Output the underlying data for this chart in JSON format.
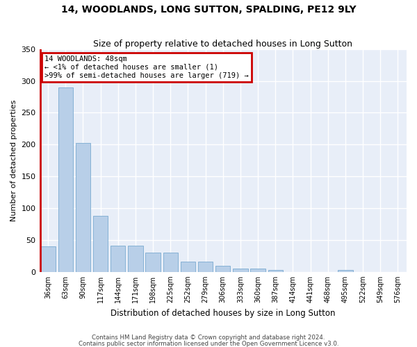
{
  "title": "14, WOODLANDS, LONG SUTTON, SPALDING, PE12 9LY",
  "subtitle": "Size of property relative to detached houses in Long Sutton",
  "xlabel": "Distribution of detached houses by size in Long Sutton",
  "ylabel": "Number of detached properties",
  "bar_color": "#b8cfe8",
  "bar_edge_color": "#7aaad0",
  "background_color": "#e8eef8",
  "grid_color": "#ffffff",
  "annotation_line1": "14 WOODLANDS: 48sqm",
  "annotation_line2": "← <1% of detached houses are smaller (1)",
  "annotation_line3": ">99% of semi-detached houses are larger (719) →",
  "annotation_box_edgecolor": "#cc0000",
  "red_line_color": "#cc0000",
  "bin_labels": [
    "36sqm",
    "63sqm",
    "90sqm",
    "117sqm",
    "144sqm",
    "171sqm",
    "198sqm",
    "225sqm",
    "252sqm",
    "279sqm",
    "306sqm",
    "333sqm",
    "360sqm",
    "387sqm",
    "414sqm",
    "441sqm",
    "468sqm",
    "495sqm",
    "522sqm",
    "549sqm",
    "576sqm"
  ],
  "bar_values": [
    40,
    290,
    203,
    88,
    41,
    41,
    30,
    30,
    16,
    16,
    10,
    5,
    5,
    3,
    0,
    0,
    0,
    3,
    0,
    0,
    0
  ],
  "ylim": [
    0,
    350
  ],
  "yticks": [
    0,
    50,
    100,
    150,
    200,
    250,
    300,
    350
  ],
  "footnote1": "Contains HM Land Registry data © Crown copyright and database right 2024.",
  "footnote2": "Contains public sector information licensed under the Open Government Licence v3.0."
}
